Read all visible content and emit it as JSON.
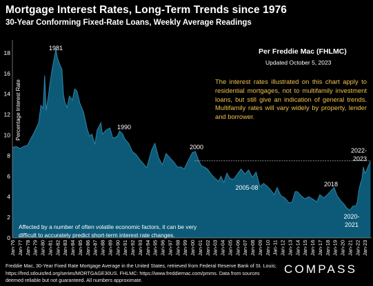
{
  "header": {
    "title": "Mortgage Interest Rates, Long-Term Trends since 1976",
    "subtitle": "30-Year Conforming Fixed-Rate Loans, Weekly Average Readings"
  },
  "source_line": "Per Freddie Mac (FHLMC)",
  "updated": "Updated October 5, 2023",
  "explanation": "The interest rates illustrated on this chart apply to residential mortgages, not to multifamily investment loans, but still give an indication of general trends. Multifamily rates will vary widely by property, lender and borrower.",
  "caption": "Affected by a number of often volatile economic factors, it can be very difficult to accurately predict short-term interest rate changes.",
  "footer": {
    "source": "Freddie Mac, 30-Year Fixed Rate Mortgage Average in the United States, retrieved from Federal Reserve Bank of St. Louis; https://fred.stlouisfed.org/series/MORTGAGE30US. FHLMC: https://www.freddiemac.com/pmms. Data from sources deemed reliable but not guaranteed. All numbers approximate.",
    "brand": "COMPASS"
  },
  "colors": {
    "background": "#000000",
    "area_fill": "#0c5a78",
    "area_line": "#2e86a6",
    "explanation_text": "#f0c24a",
    "annotation_text": "#ffffff"
  },
  "chart_data": {
    "type": "area",
    "title": "Mortgage Interest Rates, Long-Term Trends since 1976",
    "ylabel": "Percentage Interest Rate",
    "ylim": [
      0,
      19
    ],
    "yticks": [
      0,
      2,
      4,
      6,
      8,
      10,
      12,
      14,
      16,
      18
    ],
    "grid": false,
    "x_tick_labels": [
      "Jan-76",
      "Jan-77",
      "Jan-78",
      "Jan-79",
      "Jan-80",
      "Jan-81",
      "Jan-82",
      "Jan-83",
      "Jan-84",
      "Jan-85",
      "Jan-86",
      "Jan-87",
      "Jan-88",
      "Jan-89",
      "Jan-90",
      "Jan-91",
      "Jan-92",
      "Jan-93",
      "Jan-94",
      "Jan-95",
      "Jan-96",
      "Jan-97",
      "Jan-98",
      "Jan-99",
      "Jan-00",
      "Jan-01",
      "Jan-02",
      "Jan-03",
      "Jan-04",
      "Jan-05",
      "Jan-06",
      "Jan-07",
      "Jan-08",
      "Jan-09",
      "Jan-10",
      "Jan-11",
      "Jan-12",
      "Jan-13",
      "Jan-14",
      "Jan-15",
      "Jan-16",
      "Jan-17",
      "Jan-18",
      "Jan-19",
      "Jan-20",
      "Jan-21",
      "Jan-22",
      "Jan-23"
    ],
    "x": [
      1976.0,
      1976.5,
      1977.0,
      1977.5,
      1978.0,
      1978.5,
      1979.0,
      1979.5,
      1979.8,
      1980.1,
      1980.3,
      1980.5,
      1980.8,
      1981.0,
      1981.3,
      1981.6,
      1981.8,
      1982.0,
      1982.3,
      1982.6,
      1982.8,
      1983.0,
      1983.3,
      1983.6,
      1984.0,
      1984.3,
      1984.6,
      1985.0,
      1985.5,
      1986.0,
      1986.3,
      1986.6,
      1987.0,
      1987.3,
      1987.8,
      1988.0,
      1988.5,
      1989.0,
      1989.4,
      1989.8,
      1990.0,
      1990.3,
      1990.7,
      1991.0,
      1991.5,
      1992.0,
      1992.5,
      1993.0,
      1993.5,
      1993.9,
      1994.2,
      1994.6,
      1995.0,
      1995.5,
      1996.0,
      1996.5,
      1997.0,
      1997.5,
      1998.0,
      1998.5,
      1998.9,
      1999.5,
      2000.0,
      2000.4,
      2000.8,
      2001.2,
      2001.6,
      2002.0,
      2002.5,
      2003.0,
      2003.5,
      2003.8,
      2004.2,
      2004.6,
      2005.0,
      2005.5,
      2006.0,
      2006.5,
      2007.0,
      2007.5,
      2008.0,
      2008.5,
      2009.0,
      2009.5,
      2010.0,
      2010.5,
      2010.9,
      2011.3,
      2011.8,
      2012.3,
      2012.9,
      2013.3,
      2013.7,
      2014.0,
      2014.5,
      2015.0,
      2015.5,
      2016.0,
      2016.6,
      2017.0,
      2017.5,
      2018.0,
      2018.5,
      2018.9,
      2019.3,
      2019.8,
      2020.2,
      2020.6,
      2021.0,
      2021.4,
      2021.8,
      2022.0,
      2022.2,
      2022.4,
      2022.6,
      2022.8,
      2023.0,
      2023.2,
      2023.4,
      2023.6,
      2023.76
    ],
    "series": [
      {
        "values": [
          8.8,
          8.9,
          8.7,
          8.9,
          9.0,
          9.7,
          10.4,
          11.2,
          12.9,
          12.6,
          15.8,
          12.4,
          13.8,
          15.0,
          16.4,
          17.6,
          18.4,
          17.5,
          16.9,
          16.4,
          14.0,
          13.2,
          12.7,
          13.8,
          13.4,
          14.5,
          14.3,
          13.1,
          12.2,
          10.5,
          9.9,
          10.1,
          9.1,
          10.5,
          11.2,
          10.1,
          10.5,
          10.7,
          9.7,
          9.8,
          9.9,
          10.4,
          10.1,
          9.6,
          9.2,
          8.4,
          8.1,
          7.6,
          7.2,
          6.8,
          7.6,
          8.6,
          9.2,
          7.8,
          7.1,
          8.2,
          7.8,
          7.4,
          6.9,
          6.9,
          6.7,
          7.6,
          8.3,
          8.4,
          7.6,
          7.0,
          6.9,
          6.7,
          6.2,
          5.8,
          5.5,
          6.0,
          5.4,
          6.3,
          5.8,
          5.7,
          6.2,
          6.7,
          6.2,
          6.6,
          5.9,
          6.4,
          5.0,
          5.3,
          5.0,
          4.6,
          4.2,
          4.9,
          4.1,
          3.9,
          3.4,
          3.5,
          4.5,
          4.5,
          4.1,
          3.8,
          4.0,
          3.8,
          3.5,
          4.2,
          3.9,
          4.2,
          4.6,
          4.9,
          4.1,
          3.6,
          3.3,
          2.9,
          2.7,
          3.1,
          3.1,
          3.5,
          4.6,
          5.3,
          5.7,
          6.9,
          6.3,
          6.5,
          6.9,
          7.2,
          7.5
        ]
      }
    ],
    "annotations": [
      {
        "label": "1981",
        "x": 1981.6,
        "y": 18.4
      },
      {
        "label": "1990",
        "x": 1990.0,
        "y": 9.9
      },
      {
        "label": "2000",
        "x": 2000.4,
        "y": 8.4
      },
      {
        "label": "2005-08",
        "x": 2006.5,
        "y": 6.7
      },
      {
        "label": "2018",
        "x": 2018.9,
        "y": 4.9
      },
      {
        "label": "2020-2021",
        "x": 2021.0,
        "y": 2.7
      },
      {
        "label": "2022-2023",
        "x": 2023.76,
        "y": 7.5
      }
    ],
    "reference_line": {
      "y": 7.5,
      "from_x": 2000.3,
      "to_x": 2023.76
    }
  }
}
